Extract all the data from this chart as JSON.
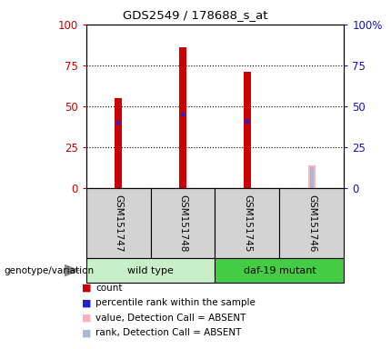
{
  "title": "GDS2549 / 178688_s_at",
  "samples": [
    "GSM151747",
    "GSM151748",
    "GSM151745",
    "GSM151746"
  ],
  "count_values": [
    55,
    86,
    71,
    0
  ],
  "rank_values": [
    40,
    45,
    41,
    0
  ],
  "absent_value": [
    0,
    0,
    0,
    14
  ],
  "absent_rank": [
    0,
    0,
    0,
    13
  ],
  "ylim": [
    0,
    100
  ],
  "yticks": [
    0,
    25,
    50,
    75,
    100
  ],
  "bar_width": 0.12,
  "rank_bar_width": 0.06,
  "count_color": "#cc0000",
  "rank_color": "#2222cc",
  "absent_value_color": "#ffb0b8",
  "absent_rank_color": "#aab8d8",
  "left_axis_color": "#cc0000",
  "right_axis_color": "#1111cc",
  "grid_color": "#000000",
  "group_spans": [
    {
      "name": "wild type",
      "start": 0,
      "end": 1,
      "color": "#c8f0c8"
    },
    {
      "name": "daf-19 mutant",
      "start": 2,
      "end": 3,
      "color": "#44cc44"
    }
  ],
  "legend_items": [
    {
      "label": "count",
      "color": "#cc0000"
    },
    {
      "label": "percentile rank within the sample",
      "color": "#2222cc"
    },
    {
      "label": "value, Detection Call = ABSENT",
      "color": "#ffb0b8"
    },
    {
      "label": "rank, Detection Call = ABSENT",
      "color": "#aab8d8"
    }
  ]
}
